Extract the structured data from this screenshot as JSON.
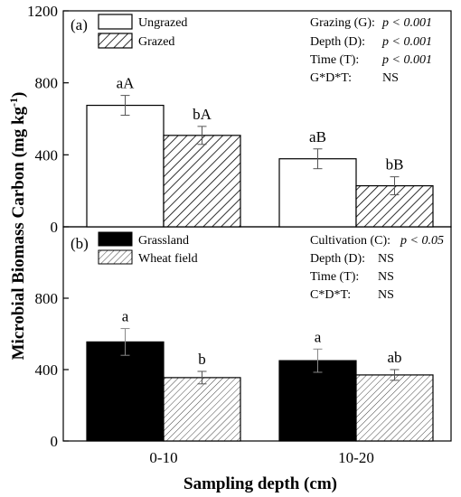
{
  "chart_data": {
    "type": "bar",
    "ylabel_main": "Microbial Biomass Carbon (mg kg",
    "ylabel_sup": "-1",
    "ylabel_close": ")",
    "xlabel": "Sampling depth (cm)",
    "categories": [
      "0-10",
      "10-20"
    ],
    "panels": [
      {
        "panel_label": "(a)",
        "ylim": [
          0,
          1200
        ],
        "yticks": [
          "0",
          "400",
          "800",
          "1200"
        ],
        "yticks_values": [
          0,
          400,
          800,
          1200
        ],
        "series": [
          {
            "name": "Ungrazed",
            "fill": "open",
            "values": [
              675,
              378
            ],
            "errors": [
              55,
              55
            ],
            "labels": [
              "aA",
              "aB"
            ]
          },
          {
            "name": "Grazed",
            "fill": "hatch",
            "values": [
              508,
              228
            ],
            "errors": [
              50,
              50
            ],
            "labels": [
              "bA",
              "bB"
            ]
          }
        ],
        "stats": [
          {
            "term": "Grazing (G):",
            "value": "p < 0.001"
          },
          {
            "term": "Depth (D):",
            "value": "p < 0.001"
          },
          {
            "term": "Time (T):",
            "value": "p < 0.001"
          },
          {
            "term": "G*D*T:",
            "value": "NS"
          }
        ]
      },
      {
        "panel_label": "(b)",
        "ylim": [
          0,
          1200
        ],
        "yticks": [
          "0",
          "400",
          "800"
        ],
        "yticks_values": [
          0,
          400,
          800
        ],
        "series": [
          {
            "name": "Grassland",
            "fill": "solid",
            "values": [
              555,
              450
            ],
            "errors": [
              75,
              65
            ],
            "labels": [
              "a",
              "a"
            ]
          },
          {
            "name": "Wheat field",
            "fill": "hatch-light",
            "values": [
              355,
              370
            ],
            "errors": [
              35,
              30
            ],
            "labels": [
              "b",
              "ab"
            ]
          }
        ],
        "stats": [
          {
            "term": "Cultivation (C):",
            "value": "p < 0.05"
          },
          {
            "term": "Depth (D):",
            "value": "NS"
          },
          {
            "term": "Time (T):",
            "value": "NS"
          },
          {
            "term": "C*D*T:",
            "value": "NS"
          }
        ]
      }
    ]
  }
}
